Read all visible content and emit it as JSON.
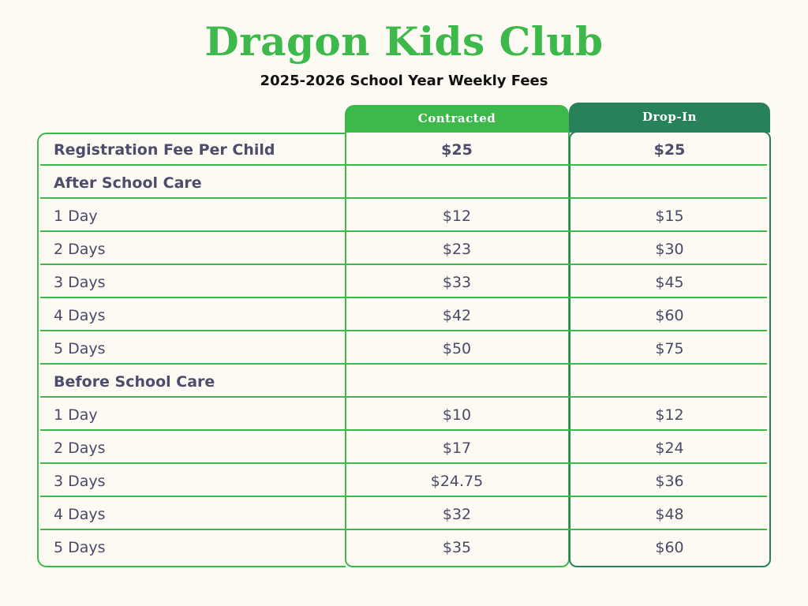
{
  "header": {
    "title": "Dragon Kids Club",
    "subtitle": "2025-2026 School Year Weekly Fees"
  },
  "columns": {
    "contracted": "Contracted",
    "dropin": "Drop-In"
  },
  "colors": {
    "background": "#fdfaf4",
    "title_green": "#3cb94a",
    "contracted_green": "#3cb94a",
    "dropin_green": "#27825a",
    "text": "#4a4a66"
  },
  "rows": [
    {
      "label": "Registration Fee Per Child",
      "contracted": "$25",
      "dropin": "$25",
      "bold": true
    },
    {
      "label": "After School Care",
      "contracted": "",
      "dropin": "",
      "bold": true
    },
    {
      "label": "1 Day",
      "contracted": "$12",
      "dropin": "$15",
      "bold": false
    },
    {
      "label": "2 Days",
      "contracted": "$23",
      "dropin": "$30",
      "bold": false
    },
    {
      "label": "3 Days",
      "contracted": "$33",
      "dropin": "$45",
      "bold": false
    },
    {
      "label": "4 Days",
      "contracted": "$42",
      "dropin": "$60",
      "bold": false
    },
    {
      "label": "5 Days",
      "contracted": "$50",
      "dropin": "$75",
      "bold": false
    },
    {
      "label": "Before School Care",
      "contracted": "",
      "dropin": "",
      "bold": true
    },
    {
      "label": "1 Day",
      "contracted": "$10",
      "dropin": "$12",
      "bold": false
    },
    {
      "label": "2 Days",
      "contracted": "$17",
      "dropin": "$24",
      "bold": false
    },
    {
      "label": "3 Days",
      "contracted": "$24.75",
      "dropin": "$36",
      "bold": false
    },
    {
      "label": "4 Days",
      "contracted": "$32",
      "dropin": "$48",
      "bold": false
    },
    {
      "label": "5 Days",
      "contracted": "$35",
      "dropin": "$60",
      "bold": false
    }
  ]
}
